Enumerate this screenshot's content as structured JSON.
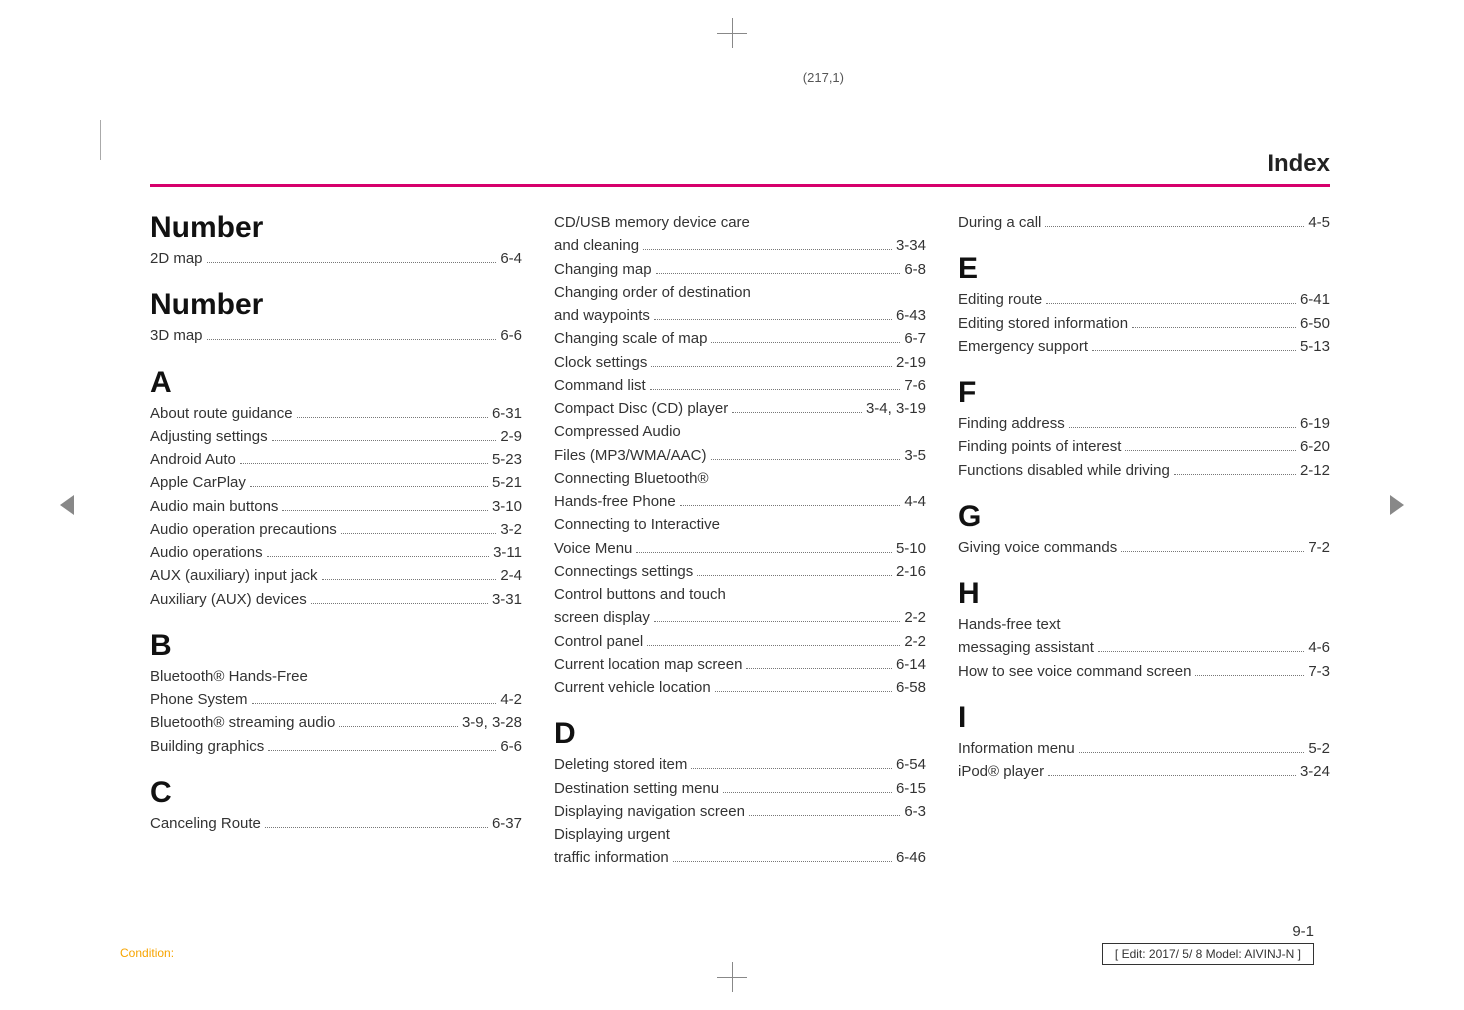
{
  "meta": {
    "folio": "(217,1)",
    "header_title": "Index",
    "header_rule_color": "#d6006c",
    "page_number": "9-1",
    "condition_label": "Condition:",
    "edit_box": "[ Edit: 2017/ 5/ 8    Model:  AIVINJ-N ]"
  },
  "cols": [
    {
      "sections": [
        {
          "head": "Number",
          "first": true,
          "entries": [
            {
              "label": "2D map",
              "pg": "6-4"
            }
          ]
        },
        {
          "head": "Number",
          "entries": [
            {
              "label": "3D map",
              "pg": "6-6"
            }
          ]
        },
        {
          "head": "A",
          "entries": [
            {
              "label": "About route guidance",
              "pg": "6-31"
            },
            {
              "label": "Adjusting settings",
              "pg": "2-9"
            },
            {
              "label": "Android Auto",
              "pg": "5-23"
            },
            {
              "label": "Apple CarPlay",
              "pg": "5-21"
            },
            {
              "label": "Audio main buttons",
              "pg": "3-10"
            },
            {
              "label": "Audio operation precautions",
              "pg": "3-2"
            },
            {
              "label": "Audio operations",
              "pg": "3-11"
            },
            {
              "label": "AUX (auxiliary) input jack",
              "pg": "2-4"
            },
            {
              "label": "Auxiliary (AUX) devices",
              "pg": "3-31"
            }
          ]
        },
        {
          "head": "B",
          "entries": [
            {
              "label": "Bluetooth® Hands-Free",
              "cont": true
            },
            {
              "label": "Phone System",
              "pg": "4-2"
            },
            {
              "label": "Bluetooth® streaming audio",
              "pg": "3-9, 3-28"
            },
            {
              "label": "Building graphics",
              "pg": "6-6"
            }
          ]
        },
        {
          "head": "C",
          "entries": [
            {
              "label": "Canceling Route",
              "pg": "6-37"
            }
          ]
        }
      ]
    },
    {
      "sections": [
        {
          "head": "",
          "first": true,
          "entries": [
            {
              "label": "CD/USB memory device care",
              "cont": true
            },
            {
              "label": "and cleaning",
              "pg": "3-34"
            },
            {
              "label": "Changing map",
              "pg": "6-8"
            },
            {
              "label": "Changing order of destination",
              "cont": true
            },
            {
              "label": "and waypoints",
              "pg": "6-43"
            },
            {
              "label": "Changing scale of map",
              "pg": "6-7"
            },
            {
              "label": "Clock settings",
              "pg": "2-19"
            },
            {
              "label": "Command list",
              "pg": "7-6"
            },
            {
              "label": "Compact Disc (CD) player",
              "pg": "3-4, 3-19"
            },
            {
              "label": "Compressed Audio",
              "cont": true
            },
            {
              "label": "Files (MP3/WMA/AAC)",
              "pg": "3-5"
            },
            {
              "label": "Connecting Bluetooth®",
              "cont": true
            },
            {
              "label": "Hands-free Phone",
              "pg": "4-4"
            },
            {
              "label": "Connecting to Interactive",
              "cont": true
            },
            {
              "label": "Voice Menu",
              "pg": "5-10"
            },
            {
              "label": "Connectings settings",
              "pg": "2-16"
            },
            {
              "label": "Control buttons and touch",
              "cont": true
            },
            {
              "label": "screen display",
              "pg": "2-2"
            },
            {
              "label": "Control panel",
              "pg": "2-2"
            },
            {
              "label": "Current location map screen",
              "pg": "6-14"
            },
            {
              "label": "Current vehicle location",
              "pg": "6-58"
            }
          ]
        },
        {
          "head": "D",
          "entries": [
            {
              "label": "Deleting stored item",
              "pg": "6-54"
            },
            {
              "label": "Destination setting menu",
              "pg": "6-15"
            },
            {
              "label": "Displaying navigation screen",
              "pg": "6-3"
            },
            {
              "label": "Displaying urgent",
              "cont": true
            },
            {
              "label": "traffic information",
              "pg": "6-46"
            }
          ]
        }
      ]
    },
    {
      "sections": [
        {
          "head": "",
          "first": true,
          "entries": [
            {
              "label": "During a call",
              "pg": "4-5"
            }
          ]
        },
        {
          "head": "E",
          "entries": [
            {
              "label": "Editing route",
              "pg": "6-41"
            },
            {
              "label": "Editing stored information",
              "pg": "6-50"
            },
            {
              "label": "Emergency support",
              "pg": "5-13"
            }
          ]
        },
        {
          "head": "F",
          "entries": [
            {
              "label": "Finding address",
              "pg": "6-19"
            },
            {
              "label": "Finding points of interest",
              "pg": "6-20"
            },
            {
              "label": "Functions disabled while driving",
              "pg": "2-12"
            }
          ]
        },
        {
          "head": "G",
          "entries": [
            {
              "label": "Giving voice commands",
              "pg": "7-2"
            }
          ]
        },
        {
          "head": "H",
          "entries": [
            {
              "label": "Hands-free text",
              "cont": true
            },
            {
              "label": "messaging assistant",
              "pg": "4-6"
            },
            {
              "label": "How to see voice command screen",
              "pg": "7-3"
            }
          ]
        },
        {
          "head": "I",
          "entries": [
            {
              "label": "Information menu",
              "pg": "5-2"
            },
            {
              "label": "iPod® player",
              "pg": "3-24"
            }
          ]
        }
      ]
    }
  ]
}
